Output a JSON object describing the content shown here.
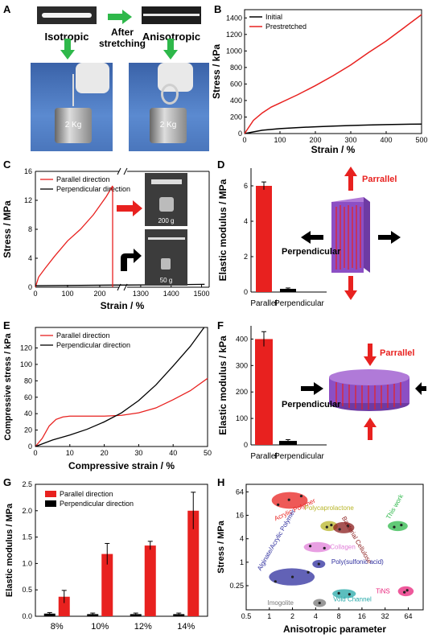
{
  "panels": {
    "A": {
      "letter": "A",
      "left_label": "Isotropic",
      "middle_label_1": "After",
      "middle_label_2": "stretching",
      "right_label": "Anisotropic",
      "weight_left": "2 Kg",
      "weight_right": "2 Kg",
      "colors": {
        "arrow": "#2eb84a"
      }
    },
    "B": {
      "letter": "B"
    },
    "C": {
      "letter": "C",
      "inset_top_weight": "200 g",
      "inset_bottom_weight": "50 g"
    },
    "D": {
      "letter": "D",
      "arrow_label_parallel": "Parrallel",
      "arrow_label_perpendicular": "Perpendicular"
    },
    "E": {
      "letter": "E"
    },
    "F": {
      "letter": "F",
      "arrow_label_parallel": "Parrallel",
      "arrow_label_perpendicular": "Perpendicular"
    },
    "G": {
      "letter": "G"
    },
    "H": {
      "letter": "H"
    }
  },
  "chart_data": [
    {
      "id": "B",
      "type": "line",
      "xlabel": "Strain / %",
      "ylabel": "Stress / kPa",
      "xlim": [
        0,
        500
      ],
      "ylim": [
        0,
        1500
      ],
      "xticks": [
        "0",
        "100",
        "200",
        "300",
        "400",
        "500"
      ],
      "yticks": [
        "0",
        "200",
        "400",
        "600",
        "800",
        "1000",
        "1200",
        "1400"
      ],
      "legend": "top-left",
      "series": [
        {
          "name": "Initial",
          "color": "#000000",
          "x": [
            0,
            50,
            100,
            150,
            200,
            250,
            300,
            350,
            400,
            450,
            500
          ],
          "y": [
            0,
            40,
            60,
            72,
            82,
            90,
            98,
            104,
            108,
            112,
            115
          ]
        },
        {
          "name": "Prestretched",
          "color": "#e8211f",
          "x": [
            0,
            25,
            50,
            75,
            100,
            150,
            200,
            250,
            300,
            350,
            400,
            450,
            500
          ],
          "y": [
            0,
            160,
            250,
            320,
            370,
            470,
            580,
            700,
            830,
            980,
            1120,
            1280,
            1440
          ]
        }
      ]
    },
    {
      "id": "C",
      "type": "line",
      "xlabel": "Strain / %",
      "ylabel": "Stress / MPa",
      "ylim": [
        0,
        16
      ],
      "xticks": [
        "0",
        "100",
        "200",
        "1300",
        "1400",
        "1500"
      ],
      "yticks": [
        "0",
        "4",
        "8",
        "12",
        "16"
      ],
      "legend": "top-left",
      "series": [
        {
          "name": "Parallel direction",
          "color": "#e8211f",
          "x": [
            0,
            10,
            30,
            60,
            100,
            140,
            180,
            220,
            240
          ],
          "y": [
            0,
            1.4,
            2.6,
            4.3,
            6.4,
            8.0,
            10.0,
            12.5,
            14.0
          ]
        },
        {
          "name": "Perpendicular direction",
          "color": "#000000",
          "x": [
            0,
            250,
            1250,
            1400,
            1510
          ],
          "y": [
            0.2,
            0.3,
            0.3,
            0.35,
            0.4
          ]
        }
      ]
    },
    {
      "id": "D",
      "type": "bar",
      "ylabel": "Elastic modulus / MPa",
      "categories": [
        "Parallel",
        "Perpendicular"
      ],
      "values": [
        6.0,
        0.18
      ],
      "errors": [
        0.22,
        0.05
      ],
      "ylim": [
        0,
        7
      ],
      "yticks": [
        "0",
        "2",
        "4",
        "6"
      ],
      "colors": [
        "#e8211f",
        "#000000"
      ]
    },
    {
      "id": "E",
      "type": "line",
      "xlabel": "Compressive strain / %",
      "ylabel": "Compressive stress / kPa",
      "xlim": [
        0,
        50
      ],
      "ylim": [
        0,
        145
      ],
      "xticks": [
        "0",
        "10",
        "20",
        "30",
        "40",
        "50"
      ],
      "yticks": [
        "0",
        "20",
        "40",
        "60",
        "80",
        "100",
        "120"
      ],
      "legend": "top-left",
      "series": [
        {
          "name": "Parallel direction",
          "color": "#e8211f",
          "x": [
            0,
            2,
            4,
            6,
            8,
            10,
            15,
            20,
            25,
            30,
            35,
            40,
            45,
            50
          ],
          "y": [
            0,
            10,
            25,
            33,
            36,
            37,
            37,
            37,
            38,
            41,
            47,
            57,
            68,
            83
          ]
        },
        {
          "name": "Perpendicular direction",
          "color": "#000000",
          "x": [
            0,
            5,
            10,
            15,
            20,
            25,
            30,
            35,
            40,
            45,
            49
          ],
          "y": [
            0,
            8,
            14,
            21,
            30,
            41,
            56,
            75,
            98,
            122,
            145
          ]
        }
      ]
    },
    {
      "id": "F",
      "type": "bar",
      "ylabel": "Elastic modulus / kPa",
      "categories": [
        "Parallel",
        "Perpendicular"
      ],
      "values": [
        400,
        15
      ],
      "errors": [
        28,
        5
      ],
      "ylim": [
        0,
        450
      ],
      "yticks": [
        "0",
        "100",
        "200",
        "300",
        "400"
      ],
      "colors": [
        "#e8211f",
        "#000000"
      ]
    },
    {
      "id": "G",
      "type": "bar",
      "ylabel": "Elastic modulus / MPa",
      "categories": [
        "8%",
        "10%",
        "12%",
        "14%"
      ],
      "ylim": [
        0,
        2.5
      ],
      "yticks": [
        "0.0",
        "0.5",
        "1.0",
        "1.5",
        "2.0",
        "2.5"
      ],
      "legend": "top-left",
      "series": [
        {
          "name": "Parallel direction",
          "color": "#e8211f",
          "values": [
            0.37,
            1.18,
            1.34,
            2.0
          ],
          "errors": [
            0.12,
            0.2,
            0.08,
            0.35
          ]
        },
        {
          "name": "Perpendicular direction",
          "color": "#000000",
          "values": [
            0.05,
            0.04,
            0.04,
            0.04
          ],
          "errors": [
            0.02,
            0.02,
            0.02,
            0.02
          ]
        }
      ]
    },
    {
      "id": "H",
      "type": "scatter",
      "xlabel": "Anisotropic  parameter",
      "ylabel": "Stress / MPa",
      "xscale": "log2",
      "yscale": "log4",
      "xticks": [
        "0.5",
        "1",
        "2",
        "4",
        "8",
        "16",
        "32",
        "64"
      ],
      "yticks": [
        "0.25",
        "1",
        "4",
        "16",
        "64"
      ],
      "groups": [
        {
          "name": "Acrylic Polymer",
          "color": "#e8211f",
          "points": [
            [
              1.3,
              30
            ],
            [
              1.8,
              40
            ],
            [
              2.6,
              50
            ]
          ]
        },
        {
          "name": "Polycaprolactone",
          "color": "#b8b528",
          "points": [
            [
              5.6,
              8
            ],
            [
              6.4,
              9
            ]
          ]
        },
        {
          "name": "Bacterial Cellulose",
          "color": "#8a1c1c",
          "points": [
            [
              8.2,
              7
            ],
            [
              10.5,
              8.5
            ]
          ]
        },
        {
          "name": "This work",
          "color": "#2eb84a",
          "points": [
            [
              42,
              8
            ],
            [
              52,
              9
            ]
          ]
        },
        {
          "name": "Collagen",
          "color": "#e07fd8",
          "points": [
            [
              3.4,
              2.6
            ],
            [
              5.2,
              2.3
            ]
          ]
        },
        {
          "name": "Alginate/Acrylic Polymer",
          "color": "#2e2e9e",
          "points": [
            [
              1.2,
              0.32
            ],
            [
              2.0,
              0.42
            ],
            [
              3.2,
              0.55
            ]
          ]
        },
        {
          "name": "Poly(sulfonic acid)",
          "color": "#2e2e9e",
          "points": [
            [
              4.4,
              0.9
            ]
          ]
        },
        {
          "name": "Imogolite",
          "color": "#777777",
          "points": [
            [
              4.5,
              0.09
            ]
          ]
        },
        {
          "name": "Void Channel",
          "color": "#25a8a8",
          "points": [
            [
              8,
              0.16
            ],
            [
              11,
              0.15
            ]
          ]
        },
        {
          "name": "TiNS",
          "color": "#e8217a",
          "points": [
            [
              57,
              0.17
            ],
            [
              62,
              0.19
            ]
          ]
        }
      ]
    }
  ]
}
